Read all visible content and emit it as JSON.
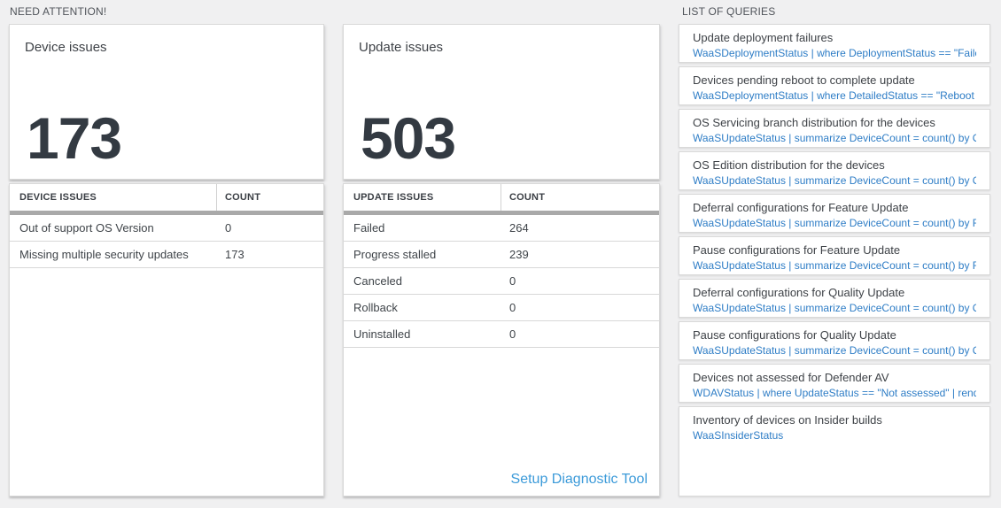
{
  "sections": {
    "need_attention": "NEED ATTENTION!",
    "list_of_queries": "LIST OF QUERIES"
  },
  "device_tile": {
    "title": "Device issues",
    "big_number": "173",
    "table": {
      "headers": [
        "DEVICE ISSUES",
        "COUNT"
      ],
      "rows": [
        {
          "label": "Out of support OS Version",
          "count": "0"
        },
        {
          "label": "Missing multiple security updates",
          "count": "173"
        }
      ]
    }
  },
  "update_tile": {
    "title": "Update issues",
    "big_number": "503",
    "table": {
      "headers": [
        "UPDATE ISSUES",
        "COUNT"
      ],
      "rows": [
        {
          "label": "Failed",
          "count": "264"
        },
        {
          "label": "Progress stalled",
          "count": "239"
        },
        {
          "label": "Canceled",
          "count": "0"
        },
        {
          "label": "Rollback",
          "count": "0"
        },
        {
          "label": "Uninstalled",
          "count": "0"
        }
      ]
    },
    "footer_link": "Setup Diagnostic Tool"
  },
  "queries": [
    {
      "title": "Update deployment failures",
      "query": "WaaSDeploymentStatus | where DeploymentStatus == \"Failed\" |..."
    },
    {
      "title": "Devices pending reboot to complete update",
      "query": "WaaSDeploymentStatus | where DetailedStatus == \"Reboot pend..."
    },
    {
      "title": "OS Servicing branch distribution for the devices",
      "query": "WaaSUpdateStatus | summarize DeviceCount = count() by OSSer..."
    },
    {
      "title": "OS Edition distribution for the devices",
      "query": "WaaSUpdateStatus | summarize DeviceCount = count() by OSEdit..."
    },
    {
      "title": "Deferral configurations for Feature Update",
      "query": "WaaSUpdateStatus | summarize DeviceCount = count() by Featur..."
    },
    {
      "title": "Pause configurations for Feature Update",
      "query": "WaaSUpdateStatus | summarize DeviceCount = count() by Featur..."
    },
    {
      "title": "Deferral configurations for Quality Update",
      "query": "WaaSUpdateStatus | summarize DeviceCount = count() by Qualit..."
    },
    {
      "title": "Pause configurations for Quality Update",
      "query": "WaaSUpdateStatus | summarize DeviceCount = count() by Qualit..."
    },
    {
      "title": "Devices not assessed for Defender AV",
      "query": "WDAVStatus | where UpdateStatus == \"Not assessed\" | render ta..."
    },
    {
      "title": "Inventory of devices on Insider builds",
      "query": "WaaSInsiderStatus"
    }
  ],
  "colors": {
    "page_bg": "#f0f0f1",
    "card_bg": "#ffffff",
    "card_border": "#d9d9d9",
    "big_number": "#333a42",
    "query_link_blue": "#2e7dc6",
    "footer_link_blue": "#3b9ad9",
    "graybar": "#a9a9a9"
  }
}
